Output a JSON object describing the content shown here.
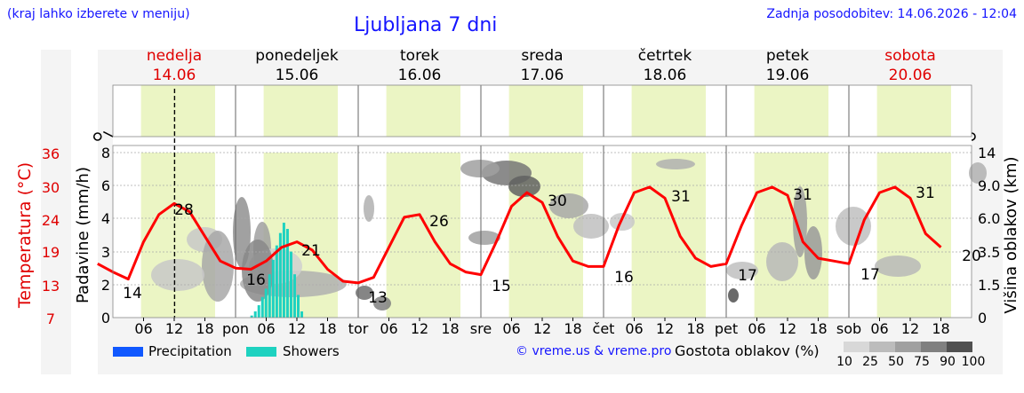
{
  "header": {
    "left_note": "(kraj lahko izberete v meniju)",
    "title": "Ljubljana 7 dni",
    "updated": "Zadnja posodobitev: 14.06.2026 - 12:04"
  },
  "days": [
    {
      "name": "nedelja",
      "date": "14.06",
      "holiday": true
    },
    {
      "name": "ponedeljek",
      "date": "15.06",
      "holiday": false
    },
    {
      "name": "torek",
      "date": "16.06",
      "holiday": false
    },
    {
      "name": "sreda",
      "date": "17.06",
      "holiday": false
    },
    {
      "name": "četrtek",
      "date": "18.06",
      "holiday": false
    },
    {
      "name": "petek",
      "date": "19.06",
      "holiday": false
    },
    {
      "name": "sobota",
      "date": "20.06",
      "holiday": true
    }
  ],
  "day_abbr": [
    "pon",
    "tor",
    "sre",
    "čet",
    "pet",
    "sob"
  ],
  "hour_ticks": [
    "06",
    "12",
    "18"
  ],
  "colors": {
    "holiday": "#e00000",
    "link": "#1515ff",
    "temperature_line": "#ff0000",
    "daylight": "#ebf5c4",
    "precipitation": "#1058ff",
    "showers": "#1ed2c0"
  },
  "icons": [
    "moon-fog-icon",
    "sun-icon",
    "sun-cloud-icon",
    "sun-thunder-icon",
    "moon-thunder-icon",
    "cloud-icon",
    "sun-cloud-icon",
    "sun-cloud-icon",
    "moon-fog-icon",
    "fog-icon",
    "sun-icon",
    "sun-cloud-icon",
    "moon-cloud-icon",
    "cloud-icon",
    "sun-cloud-icon",
    "sun-cloud-icon",
    "moon-fog-icon",
    "sun-icon",
    "sun-cloud-icon",
    "sun-cloud-icon",
    "moon-fog-icon",
    "sun-icon",
    "sun-icon",
    "sun-cloud-icon",
    "moon-cloud-icon",
    "sun-icon",
    "sun-icon",
    "sun-icon"
  ],
  "legend": {
    "precipitation": "Precipitation",
    "showers": "Showers",
    "copyright": "© vreme.us & vreme.pro",
    "cloud_title": "Gostota oblakov (%)",
    "cloud_levels": [
      "10",
      "25",
      "50",
      "75",
      "90",
      "100"
    ]
  },
  "chart_data": {
    "type": "line",
    "x_start": "14.06.2026 00:00",
    "x_end": "20.06.2026 24:00",
    "x_step_hours": 3,
    "now_marker": "14.06 12:04",
    "axes": {
      "temperature": {
        "label": "Temperatura (°C)",
        "ticks": [
          "7",
          "13",
          "19",
          "24",
          "30",
          "36"
        ],
        "ylim": [
          7,
          37
        ]
      },
      "precipitation": {
        "label": "Padavine (mm/h)",
        "ticks": [
          "0",
          "2",
          "3",
          "4",
          "6",
          "8"
        ]
      },
      "cloud_height": {
        "label": "Višina oblakov (km)",
        "ticks": [
          "0",
          "1.5",
          "3.5",
          "6.0",
          "9.0",
          "14"
        ]
      }
    },
    "series": [
      {
        "name": "Temperatura (°C)",
        "values": [
          17,
          15.5,
          14.2,
          21,
          26,
          28,
          26.5,
          22,
          17.5,
          16.2,
          16,
          17.5,
          20,
          21,
          19.5,
          16,
          13.8,
          13.5,
          14.5,
          20,
          25.5,
          26,
          21,
          17,
          15.5,
          15,
          21,
          27.5,
          30,
          28.2,
          22,
          17.5,
          16.5,
          16.5,
          24,
          30,
          31,
          29,
          22,
          18,
          16.5,
          17,
          24,
          30,
          31,
          29.5,
          21,
          18,
          17.5,
          17,
          25,
          30,
          31,
          29,
          22.5,
          20
        ]
      },
      {
        "name": "Showers",
        "values": [
          0,
          0,
          0,
          0,
          0,
          0,
          0,
          0.1,
          0.3,
          0.6,
          1,
          1.4,
          2.1,
          2.8,
          3.5,
          4.1,
          4.6,
          4.3,
          3.2,
          2.1,
          1.1,
          0.3,
          0
        ]
      }
    ],
    "temperature_labels": [
      {
        "t": "14",
        "value": 14
      },
      {
        "t": "28",
        "value": 28
      },
      {
        "t": "16",
        "value": 16
      },
      {
        "t": "21",
        "value": 21
      },
      {
        "t": "13",
        "value": 13
      },
      {
        "t": "26",
        "value": 26
      },
      {
        "t": "15",
        "value": 15
      },
      {
        "t": "30",
        "value": 30
      },
      {
        "t": "16",
        "value": 16
      },
      {
        "t": "31",
        "value": 31
      },
      {
        "t": "17",
        "value": 17
      },
      {
        "t": "31",
        "value": 31
      },
      {
        "t": "17",
        "value": 17
      },
      {
        "t": "31",
        "value": 31
      },
      {
        "t": "20",
        "value": 20
      }
    ]
  }
}
